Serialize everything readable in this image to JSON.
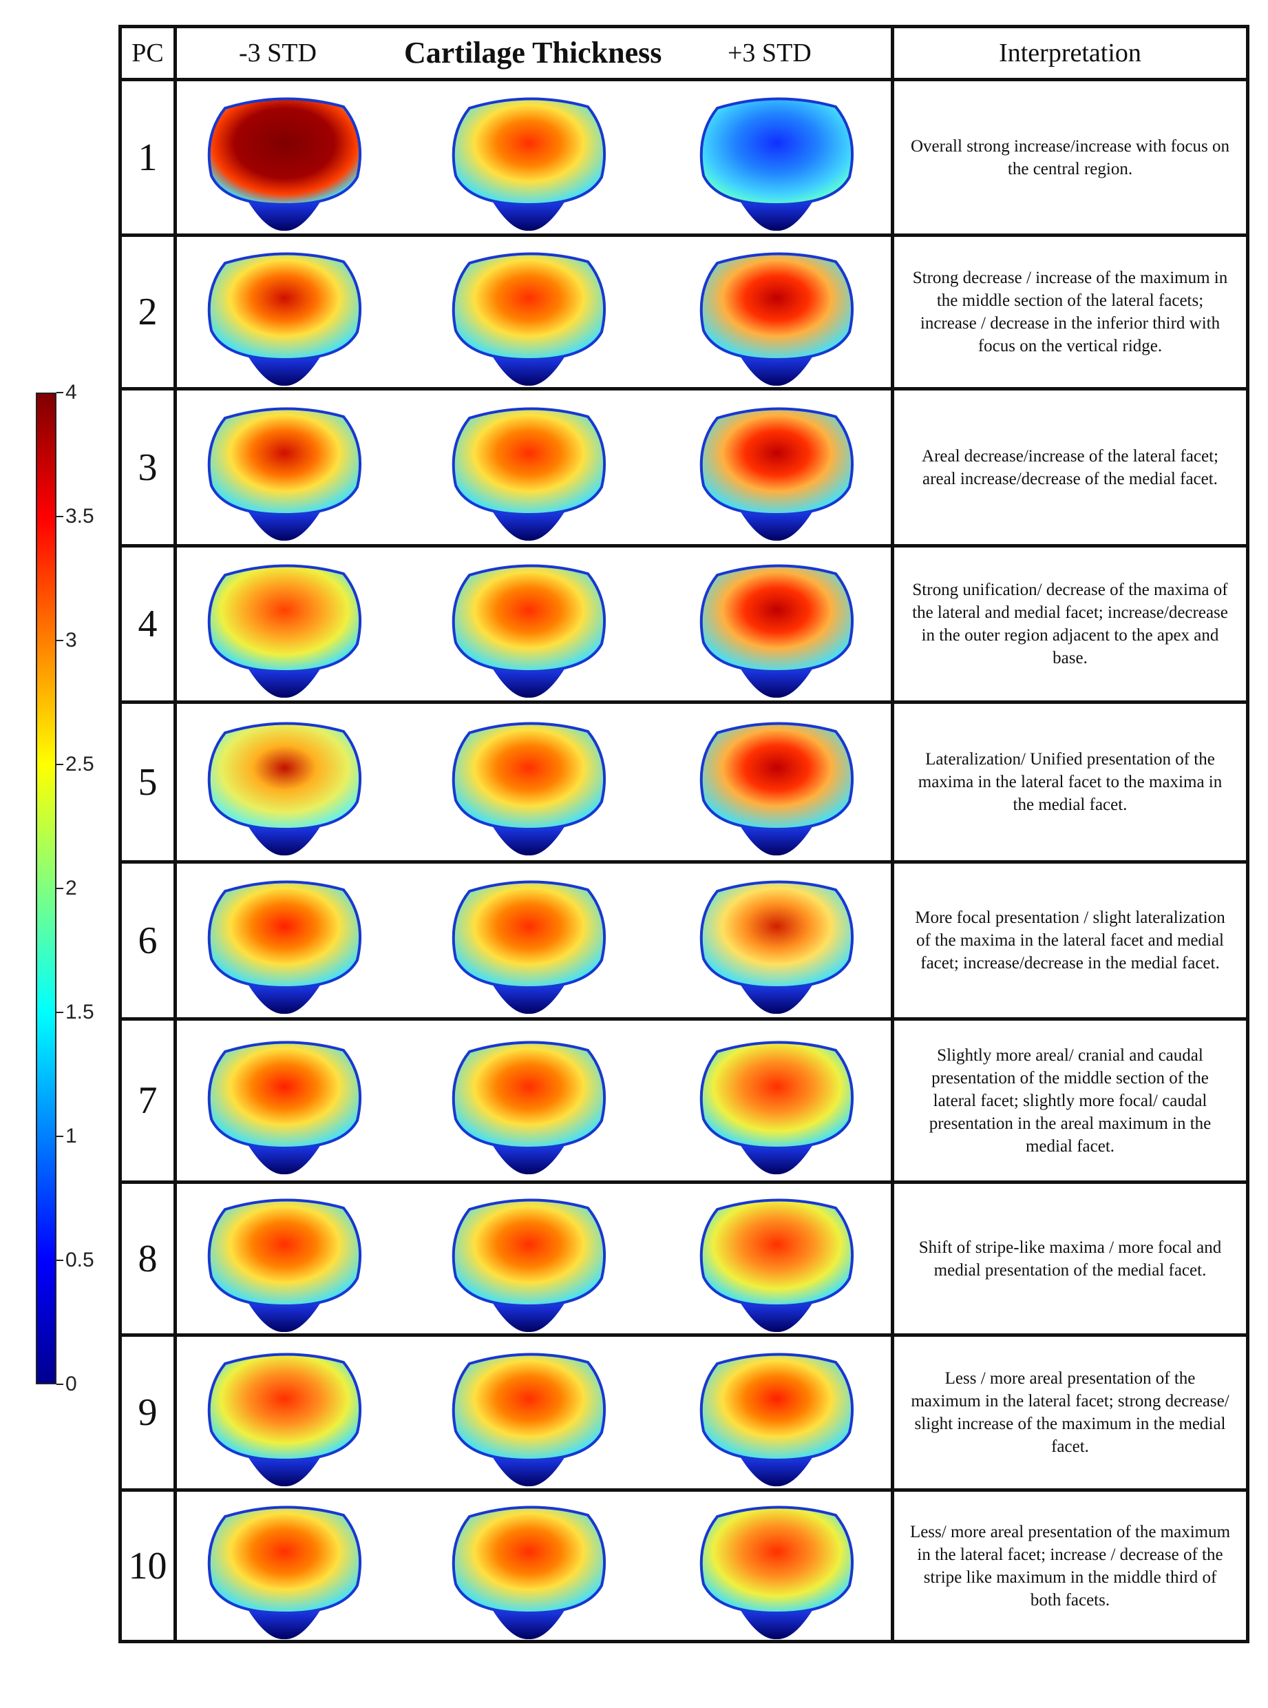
{
  "colorbar": {
    "ticks": [
      "4",
      "3.5",
      "3",
      "2.5",
      "2",
      "1.5",
      "1",
      "0.5",
      "0"
    ],
    "min": 0,
    "max": 4,
    "colormap": "jet"
  },
  "header": {
    "pc": "PC",
    "minus": "-3 STD",
    "title": "Cartilage Thickness",
    "plus": "+3 STD",
    "interpretation": "Interpretation"
  },
  "rows": [
    {
      "pc": "1",
      "interpretation": "Overall strong increase/increase with focus on the central region."
    },
    {
      "pc": "2",
      "interpretation": "Strong decrease / increase of the maximum in the middle section of the lateral facets; increase / decrease in the inferior third with focus on the vertical ridge."
    },
    {
      "pc": "3",
      "interpretation": "Areal decrease/increase of the lateral facet; areal increase/decrease of the medial facet."
    },
    {
      "pc": "4",
      "interpretation": "Strong unification/ decrease of the maxima of the lateral and medial facet; increase/decrease in the outer region adjacent to the apex and base."
    },
    {
      "pc": "5",
      "interpretation": "Lateralization/ Unified presentation of the maxima in the lateral facet to the maxima in the medial facet."
    },
    {
      "pc": "6",
      "interpretation": "More focal presentation / slight lateralization of the maxima in the lateral facet and medial facet; increase/decrease in the medial facet."
    },
    {
      "pc": "7",
      "interpretation": "Slightly more areal/ cranial and caudal presentation of the middle section of the lateral facet; slightly more focal/ caudal presentation in the areal maximum in the medial facet."
    },
    {
      "pc": "8",
      "interpretation": "Shift of stripe-like maxima / more focal and medial presentation of the medial facet."
    },
    {
      "pc": "9",
      "interpretation": "Less / more areal presentation of the maximum in the lateral facet; strong decrease/ slight increase of the maximum in the medial facet."
    },
    {
      "pc": "10",
      "interpretation": "Less/ more areal presentation of the maximum in the lateral facet; increase / decrease of the stripe like maximum in the middle third of both facets."
    }
  ]
}
